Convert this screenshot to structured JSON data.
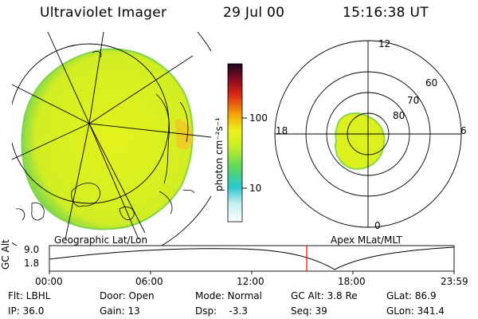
{
  "header": {
    "instrument": "Ultraviolet Imager",
    "date": "29 Jul 00",
    "time": "15:16:38 UT"
  },
  "colorbar": {
    "unit_label": "photon cm⁻²s⁻¹",
    "ticks": [
      "100",
      "10"
    ]
  },
  "geo_panel": {
    "label": "Geographic Lat/Lon"
  },
  "polar_panel": {
    "label": "Apex MLat/MLT",
    "lat_labels": [
      "80",
      "70",
      "60"
    ],
    "mlt_labels": {
      "top": "12",
      "right": "6",
      "bottom": "0",
      "left": "18"
    }
  },
  "altitude_plot": {
    "ylabel": "GC Alt",
    "yticks": [
      "9.0",
      "1.8"
    ],
    "xticks": [
      "00:00",
      "06:00",
      "12:00",
      "18:00",
      "23:59"
    ],
    "current_marker_time": "15:16"
  },
  "footer": {
    "row1": [
      "Flt: LBHL",
      "Door: Open",
      "Mode: Normal",
      "GC Alt: 3.8 Re",
      "GLat: 86.9"
    ],
    "row2": [
      "IP: 36.0",
      "Gain: 13",
      "Dsp:    -3.3",
      "Seq: 39",
      "GLon: 341.4"
    ]
  },
  "colors": {
    "disk_fill": "#d6f01e",
    "disk_edge": "#8fdc3a",
    "marker": "#ff0000",
    "colorbar_stops": [
      "#ffffff",
      "#9fe8ea",
      "#26c7cf",
      "#7fe04a",
      "#e6f01c",
      "#f2a20a",
      "#dd2a14",
      "#8a0a22",
      "#2a0a3a"
    ]
  }
}
